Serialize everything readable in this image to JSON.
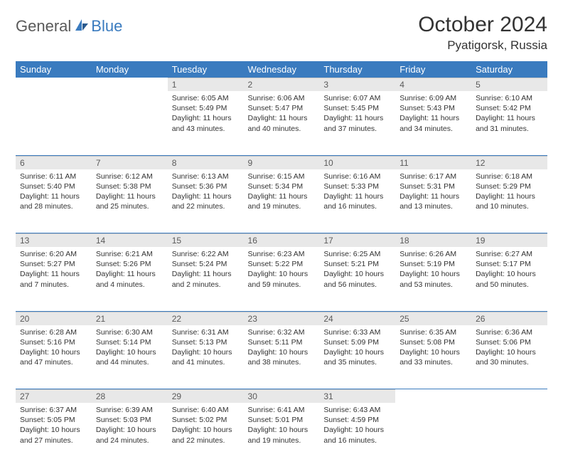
{
  "logo": {
    "part1": "General",
    "part2": "Blue"
  },
  "title": "October 2024",
  "location": "Pyatigorsk, Russia",
  "colors": {
    "header_bg": "#3a7bbf",
    "header_text": "#ffffff",
    "daynum_bg": "#e8e8e8",
    "daynum_text": "#5a5a5a",
    "body_text": "#333333",
    "week_sep": "#3a7bbf",
    "page_bg": "#ffffff"
  },
  "daynames": [
    "Sunday",
    "Monday",
    "Tuesday",
    "Wednesday",
    "Thursday",
    "Friday",
    "Saturday"
  ],
  "weeks": [
    [
      null,
      null,
      {
        "n": "1",
        "sunrise": "6:05 AM",
        "sunset": "5:49 PM",
        "daylight": "11 hours and 43 minutes."
      },
      {
        "n": "2",
        "sunrise": "6:06 AM",
        "sunset": "5:47 PM",
        "daylight": "11 hours and 40 minutes."
      },
      {
        "n": "3",
        "sunrise": "6:07 AM",
        "sunset": "5:45 PM",
        "daylight": "11 hours and 37 minutes."
      },
      {
        "n": "4",
        "sunrise": "6:09 AM",
        "sunset": "5:43 PM",
        "daylight": "11 hours and 34 minutes."
      },
      {
        "n": "5",
        "sunrise": "6:10 AM",
        "sunset": "5:42 PM",
        "daylight": "11 hours and 31 minutes."
      }
    ],
    [
      {
        "n": "6",
        "sunrise": "6:11 AM",
        "sunset": "5:40 PM",
        "daylight": "11 hours and 28 minutes."
      },
      {
        "n": "7",
        "sunrise": "6:12 AM",
        "sunset": "5:38 PM",
        "daylight": "11 hours and 25 minutes."
      },
      {
        "n": "8",
        "sunrise": "6:13 AM",
        "sunset": "5:36 PM",
        "daylight": "11 hours and 22 minutes."
      },
      {
        "n": "9",
        "sunrise": "6:15 AM",
        "sunset": "5:34 PM",
        "daylight": "11 hours and 19 minutes."
      },
      {
        "n": "10",
        "sunrise": "6:16 AM",
        "sunset": "5:33 PM",
        "daylight": "11 hours and 16 minutes."
      },
      {
        "n": "11",
        "sunrise": "6:17 AM",
        "sunset": "5:31 PM",
        "daylight": "11 hours and 13 minutes."
      },
      {
        "n": "12",
        "sunrise": "6:18 AM",
        "sunset": "5:29 PM",
        "daylight": "11 hours and 10 minutes."
      }
    ],
    [
      {
        "n": "13",
        "sunrise": "6:20 AM",
        "sunset": "5:27 PM",
        "daylight": "11 hours and 7 minutes."
      },
      {
        "n": "14",
        "sunrise": "6:21 AM",
        "sunset": "5:26 PM",
        "daylight": "11 hours and 4 minutes."
      },
      {
        "n": "15",
        "sunrise": "6:22 AM",
        "sunset": "5:24 PM",
        "daylight": "11 hours and 2 minutes."
      },
      {
        "n": "16",
        "sunrise": "6:23 AM",
        "sunset": "5:22 PM",
        "daylight": "10 hours and 59 minutes."
      },
      {
        "n": "17",
        "sunrise": "6:25 AM",
        "sunset": "5:21 PM",
        "daylight": "10 hours and 56 minutes."
      },
      {
        "n": "18",
        "sunrise": "6:26 AM",
        "sunset": "5:19 PM",
        "daylight": "10 hours and 53 minutes."
      },
      {
        "n": "19",
        "sunrise": "6:27 AM",
        "sunset": "5:17 PM",
        "daylight": "10 hours and 50 minutes."
      }
    ],
    [
      {
        "n": "20",
        "sunrise": "6:28 AM",
        "sunset": "5:16 PM",
        "daylight": "10 hours and 47 minutes."
      },
      {
        "n": "21",
        "sunrise": "6:30 AM",
        "sunset": "5:14 PM",
        "daylight": "10 hours and 44 minutes."
      },
      {
        "n": "22",
        "sunrise": "6:31 AM",
        "sunset": "5:13 PM",
        "daylight": "10 hours and 41 minutes."
      },
      {
        "n": "23",
        "sunrise": "6:32 AM",
        "sunset": "5:11 PM",
        "daylight": "10 hours and 38 minutes."
      },
      {
        "n": "24",
        "sunrise": "6:33 AM",
        "sunset": "5:09 PM",
        "daylight": "10 hours and 35 minutes."
      },
      {
        "n": "25",
        "sunrise": "6:35 AM",
        "sunset": "5:08 PM",
        "daylight": "10 hours and 33 minutes."
      },
      {
        "n": "26",
        "sunrise": "6:36 AM",
        "sunset": "5:06 PM",
        "daylight": "10 hours and 30 minutes."
      }
    ],
    [
      {
        "n": "27",
        "sunrise": "6:37 AM",
        "sunset": "5:05 PM",
        "daylight": "10 hours and 27 minutes."
      },
      {
        "n": "28",
        "sunrise": "6:39 AM",
        "sunset": "5:03 PM",
        "daylight": "10 hours and 24 minutes."
      },
      {
        "n": "29",
        "sunrise": "6:40 AM",
        "sunset": "5:02 PM",
        "daylight": "10 hours and 22 minutes."
      },
      {
        "n": "30",
        "sunrise": "6:41 AM",
        "sunset": "5:01 PM",
        "daylight": "10 hours and 19 minutes."
      },
      {
        "n": "31",
        "sunrise": "6:43 AM",
        "sunset": "4:59 PM",
        "daylight": "10 hours and 16 minutes."
      },
      null,
      null
    ]
  ],
  "labels": {
    "sunrise": "Sunrise:",
    "sunset": "Sunset:",
    "daylight": "Daylight:"
  }
}
